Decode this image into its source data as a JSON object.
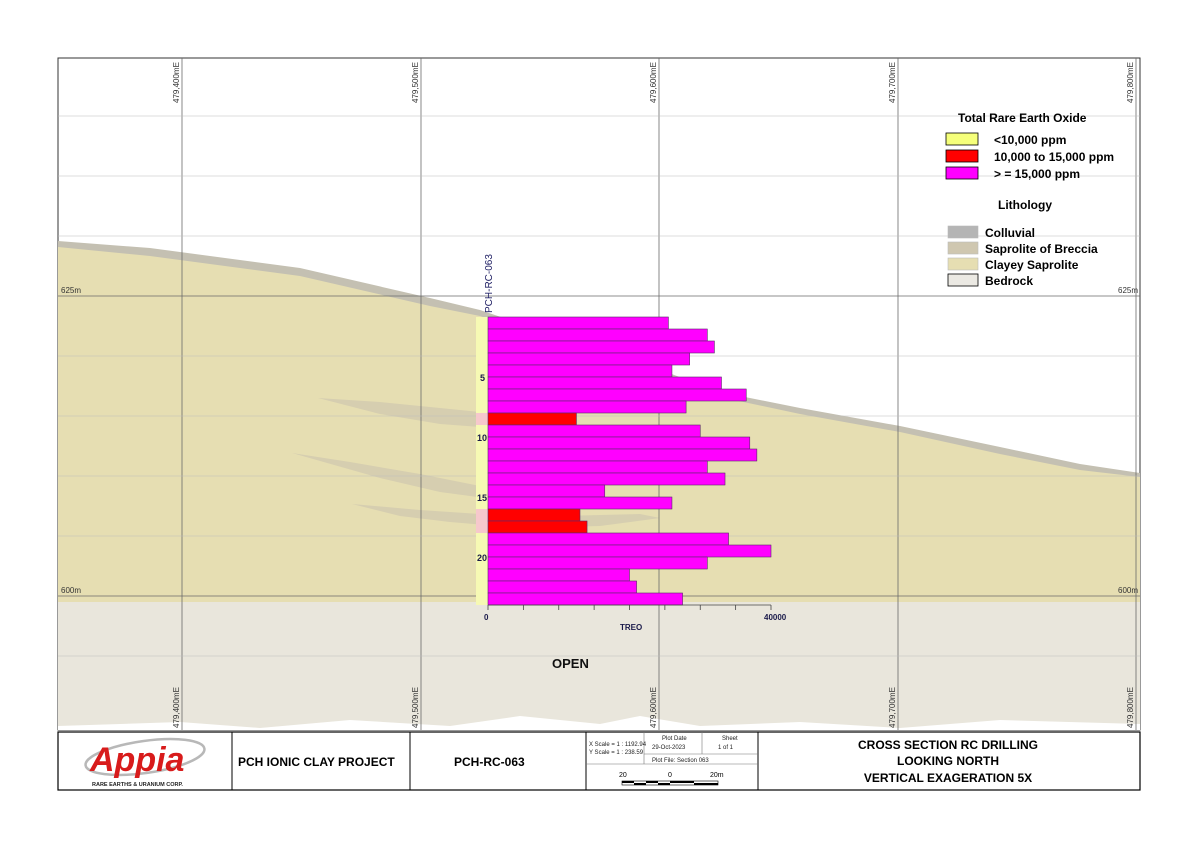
{
  "section": {
    "easting_labels": [
      "479,400mE",
      "479,500mE",
      "479,600mE",
      "479,700mE",
      "479,800mE"
    ],
    "elevation_labels": [
      "625m",
      "600m"
    ],
    "open_label": "OPEN"
  },
  "legend": {
    "treo_title": "Total Rare Earth Oxide",
    "treo_items": [
      {
        "label": "<10,000 ppm",
        "color": "#f5ff7a"
      },
      {
        "label": "10,000 to 15,000 ppm",
        "color": "#ff0000"
      },
      {
        "label": "> = 15,000 ppm",
        "color": "#ff00ff"
      }
    ],
    "litho_title": "Lithology",
    "litho_items": [
      {
        "label": "Colluvial",
        "color": "#b5b5b5"
      },
      {
        "label": "Saprolite of Breccia",
        "color": "#cfc7b0"
      },
      {
        "label": "Clayey Saprolite",
        "color": "#e6deb2"
      },
      {
        "label": "Bedrock",
        "color": "#ebe9e3"
      }
    ]
  },
  "drillhole": {
    "id": "PCH-RC-063",
    "depth_labels": [
      "5",
      "10",
      "15",
      "20"
    ],
    "axis_title": "TREO",
    "axis_ticks": [
      "0",
      "40000"
    ],
    "axis_max": 40000,
    "intervals": [
      {
        "from": 0,
        "to": 1,
        "treo": 25500,
        "class": "high"
      },
      {
        "from": 1,
        "to": 2,
        "treo": 31000,
        "class": "high"
      },
      {
        "from": 2,
        "to": 3,
        "treo": 32000,
        "class": "high"
      },
      {
        "from": 3,
        "to": 4,
        "treo": 28500,
        "class": "high"
      },
      {
        "from": 4,
        "to": 5,
        "treo": 26000,
        "class": "high"
      },
      {
        "from": 5,
        "to": 6,
        "treo": 33000,
        "class": "high"
      },
      {
        "from": 6,
        "to": 7,
        "treo": 36500,
        "class": "high"
      },
      {
        "from": 7,
        "to": 8,
        "treo": 28000,
        "class": "high"
      },
      {
        "from": 8,
        "to": 9,
        "treo": 12500,
        "class": "mid"
      },
      {
        "from": 9,
        "to": 10,
        "treo": 30000,
        "class": "high"
      },
      {
        "from": 10,
        "to": 11,
        "treo": 37000,
        "class": "high"
      },
      {
        "from": 11,
        "to": 12,
        "treo": 38000,
        "class": "high"
      },
      {
        "from": 12,
        "to": 13,
        "treo": 31000,
        "class": "high"
      },
      {
        "from": 13,
        "to": 14,
        "treo": 33500,
        "class": "high"
      },
      {
        "from": 14,
        "to": 15,
        "treo": 16500,
        "class": "high"
      },
      {
        "from": 15,
        "to": 16,
        "treo": 26000,
        "class": "high"
      },
      {
        "from": 16,
        "to": 17,
        "treo": 13000,
        "class": "mid"
      },
      {
        "from": 17,
        "to": 18,
        "treo": 14000,
        "class": "mid"
      },
      {
        "from": 18,
        "to": 19,
        "treo": 34000,
        "class": "high"
      },
      {
        "from": 19,
        "to": 20,
        "treo": 40000,
        "class": "high"
      },
      {
        "from": 20,
        "to": 21,
        "treo": 31000,
        "class": "high"
      },
      {
        "from": 21,
        "to": 22,
        "treo": 20000,
        "class": "high"
      },
      {
        "from": 22,
        "to": 23,
        "treo": 21000,
        "class": "high"
      },
      {
        "from": 23,
        "to": 24,
        "treo": 27500,
        "class": "high"
      }
    ]
  },
  "title_block": {
    "company": "Appia",
    "company_subtitle": "RARE EARTHS & URANIUM CORP.",
    "project": "PCH IONIC CLAY PROJECT",
    "hole": "PCH-RC-063",
    "x_scale": "X Scale = 1 : 1192.94",
    "y_scale": "Y Scale = 1 : 238.59",
    "plot_date_label": "Plot Date",
    "plot_date": "29-Oct-2023",
    "sheet_label": "Sheet",
    "sheet_value": "1 of 1",
    "plot_file": "Plot File: Section 063",
    "scale_left": "20",
    "scale_mid": "0",
    "scale_right": "20m",
    "title_line1": "CROSS SECTION RC DRILLING",
    "title_line2": "LOOKING NORTH",
    "title_line3": "VERTICAL EXAGERATION 5X"
  }
}
